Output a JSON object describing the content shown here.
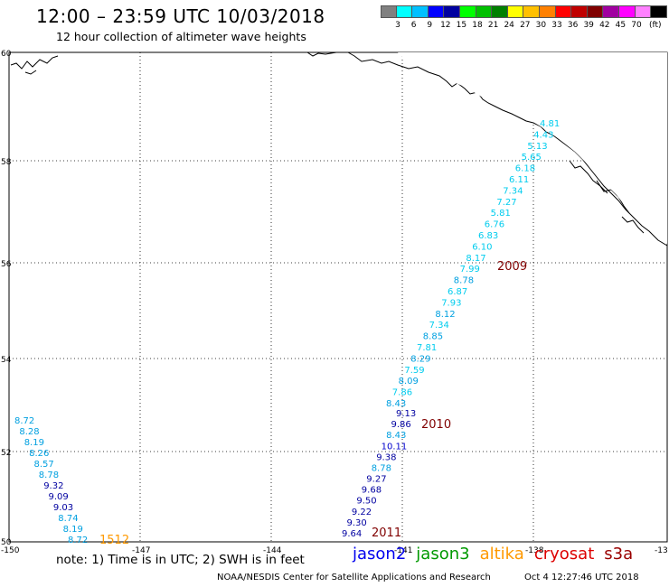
{
  "header": {
    "title": "12:00 – 23:59 UTC 10/03/2018",
    "subtitle": "12 hour collection of altimeter wave heights"
  },
  "colorbar": {
    "unit": "(ft)",
    "colors": [
      "#808080",
      "#00ffff",
      "#00c0ff",
      "#0000ff",
      "#0000a0",
      "#00ff00",
      "#00c000",
      "#008000",
      "#ffff00",
      "#ffc000",
      "#ff8000",
      "#ff0000",
      "#c00000",
      "#800000",
      "#a000a0",
      "#ff00ff",
      "#ff80ff",
      "#000000"
    ],
    "labels": [
      "3",
      "6",
      "9",
      "12",
      "15",
      "18",
      "21",
      "24",
      "27",
      "30",
      "33",
      "36",
      "39",
      "42",
      "45",
      "70"
    ]
  },
  "map": {
    "lon_ticks": [
      "-150",
      "-147",
      "-144",
      "-141",
      "-138",
      "-13"
    ],
    "lat_ticks": [
      "60",
      "58",
      "56",
      "54",
      "52",
      "50"
    ],
    "land_color": "#000000",
    "grid": "dotted"
  },
  "passes": [
    {
      "label": "2009",
      "color": "#800000"
    },
    {
      "label": "2010",
      "color": "#800000"
    },
    {
      "label": "2011",
      "color": "#800000"
    },
    {
      "label": "1512",
      "color": "#ff9900"
    }
  ],
  "observations": {
    "track_east": [
      {
        "v": "4.81",
        "c": "#00ccee"
      },
      {
        "v": "4.43",
        "c": "#00ccee"
      },
      {
        "v": "5.13",
        "c": "#00ccee"
      },
      {
        "v": "5.65",
        "c": "#00ccee"
      },
      {
        "v": "6.18",
        "c": "#00ccee"
      },
      {
        "v": "6.11",
        "c": "#00ccee"
      },
      {
        "v": "7.34",
        "c": "#00ccee"
      },
      {
        "v": "7.27",
        "c": "#00ccee"
      },
      {
        "v": "5.81",
        "c": "#00ccee"
      },
      {
        "v": "6.76",
        "c": "#00ccee"
      },
      {
        "v": "6.83",
        "c": "#00ccee"
      },
      {
        "v": "6.10",
        "c": "#00ccee"
      },
      {
        "v": "8.17",
        "c": "#00ccee"
      },
      {
        "v": "7.99",
        "c": "#00ccee"
      },
      {
        "v": "8.78",
        "c": "#00a0e0"
      },
      {
        "v": "6.87",
        "c": "#00ccee"
      },
      {
        "v": "7.93",
        "c": "#00ccee"
      },
      {
        "v": "8.12",
        "c": "#00a0e0"
      },
      {
        "v": "7.34",
        "c": "#00ccee"
      },
      {
        "v": "8.85",
        "c": "#00a0e0"
      },
      {
        "v": "7.81",
        "c": "#00ccee"
      },
      {
        "v": "8.29",
        "c": "#00a0e0"
      },
      {
        "v": "7.59",
        "c": "#00ccee"
      },
      {
        "v": "8.09",
        "c": "#00a0e0"
      },
      {
        "v": "7.86",
        "c": "#00ccee"
      },
      {
        "v": "8.43",
        "c": "#00a0e0"
      }
    ],
    "track_mid": [
      {
        "v": "9.13",
        "c": "#0000a0"
      },
      {
        "v": "9.86",
        "c": "#0000a0"
      },
      {
        "v": "8.43",
        "c": "#00a0e0"
      },
      {
        "v": "10.11",
        "c": "#0000cc"
      },
      {
        "v": "9.38",
        "c": "#0000a0"
      },
      {
        "v": "8.78",
        "c": "#00a0e0"
      },
      {
        "v": "9.27",
        "c": "#0000a0"
      },
      {
        "v": "9.68",
        "c": "#0000a0"
      },
      {
        "v": "9.50",
        "c": "#0000a0"
      },
      {
        "v": "9.22",
        "c": "#0000a0"
      },
      {
        "v": "9.30",
        "c": "#0000a0"
      },
      {
        "v": "9.64",
        "c": "#0000a0"
      }
    ],
    "track_west": [
      {
        "v": "8.72",
        "c": "#00a0e0"
      },
      {
        "v": "8.28",
        "c": "#00a0e0"
      },
      {
        "v": "8.19",
        "c": "#00a0e0"
      },
      {
        "v": "8.26",
        "c": "#00a0e0"
      },
      {
        "v": "8.57",
        "c": "#00a0e0"
      },
      {
        "v": "8.78",
        "c": "#00a0e0"
      },
      {
        "v": "9.32",
        "c": "#0000a0"
      },
      {
        "v": "9.09",
        "c": "#0000a0"
      },
      {
        "v": "9.03",
        "c": "#0000a0"
      },
      {
        "v": "8.74",
        "c": "#00a0e0"
      },
      {
        "v": "8.19",
        "c": "#00a0e0"
      },
      {
        "v": "8.72",
        "c": "#00a0e0"
      }
    ]
  },
  "footer": {
    "note": "note: 1) Time is in UTC; 2) SWH is in feet",
    "satellites": [
      {
        "name": "jason2",
        "color": "#0000ee"
      },
      {
        "name": "jason3",
        "color": "#009900"
      },
      {
        "name": "altika",
        "color": "#ff9900"
      },
      {
        "name": "cryosat",
        "color": "#dd0000"
      },
      {
        "name": "s3a",
        "color": "#990000"
      }
    ],
    "credit": "NOAA/NESDIS Center for Satellite Applications and Research",
    "stamp": "Oct  4 12:27:46 UTC 2018"
  }
}
